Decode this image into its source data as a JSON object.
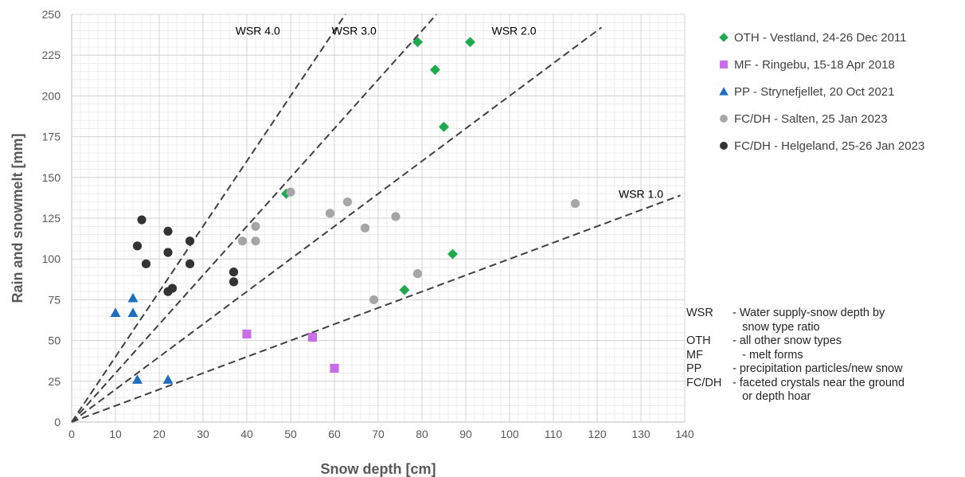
{
  "chart_data": {
    "type": "scatter",
    "xlabel": "Snow depth [cm]",
    "ylabel": "Rain and snowmelt [mm]",
    "xlim": [
      0,
      140
    ],
    "ylim": [
      0,
      250
    ],
    "x_ticks": [
      "0",
      "10",
      "20",
      "30",
      "40",
      "50",
      "60",
      "70",
      "80",
      "90",
      "100",
      "110",
      "120",
      "130",
      "140"
    ],
    "y_ticks": [
      "0",
      "25",
      "50",
      "75",
      "100",
      "125",
      "150",
      "175",
      "200",
      "225",
      "250"
    ],
    "grid": true,
    "legend_position": "top-right",
    "series": [
      {
        "name": "OTH - Vestland, 24-26 Dec 2011",
        "marker": "diamond",
        "color": "#1faa4f",
        "points": [
          [
            49,
            140
          ],
          [
            79,
            233
          ],
          [
            91,
            233
          ],
          [
            83,
            216
          ],
          [
            85,
            181
          ],
          [
            87,
            103
          ],
          [
            76,
            81
          ]
        ]
      },
      {
        "name": "MF - Ringebu, 15-18  Apr 2018",
        "marker": "square",
        "color": "#c86ee8",
        "points": [
          [
            40,
            54
          ],
          [
            55,
            52
          ],
          [
            60,
            33
          ]
        ]
      },
      {
        "name": "PP - Strynefjellet, 20 Oct 2021",
        "marker": "triangle",
        "color": "#1f6fbd",
        "points": [
          [
            10,
            67
          ],
          [
            14,
            76
          ],
          [
            14,
            67
          ],
          [
            15,
            26
          ],
          [
            22,
            26
          ]
        ]
      },
      {
        "name": "FC/DH - Salten, 25 Jan 2023",
        "marker": "circle",
        "color": "#a6a6a6",
        "points": [
          [
            39,
            111
          ],
          [
            42,
            120
          ],
          [
            42,
            111
          ],
          [
            50,
            141
          ],
          [
            59,
            128
          ],
          [
            63,
            135
          ],
          [
            67,
            119
          ],
          [
            74,
            126
          ],
          [
            79,
            91
          ],
          [
            69,
            75
          ],
          [
            115,
            134
          ]
        ]
      },
      {
        "name": "FC/DH - Helgeland, 25-26 Jan 2023",
        "marker": "circle",
        "color": "#333333",
        "points": [
          [
            16,
            124
          ],
          [
            15,
            108
          ],
          [
            17,
            97
          ],
          [
            22,
            117
          ],
          [
            22,
            104
          ],
          [
            27,
            111
          ],
          [
            27,
            97
          ],
          [
            22,
            80
          ],
          [
            23,
            82
          ],
          [
            37,
            92
          ],
          [
            37,
            86
          ]
        ]
      }
    ],
    "reference_lines": [
      {
        "label": "WSR 4.0",
        "slope": 4.0,
        "x_end": 62.5
      },
      {
        "label": "WSR 3.0",
        "slope": 3.0,
        "x_end": 83.3
      },
      {
        "label": "WSR 2.0",
        "slope": 2.0,
        "x_end": 121
      },
      {
        "label": "WSR 1.0",
        "slope": 1.0,
        "x_end": 139
      }
    ],
    "reference_line_label_positions": [
      {
        "label": "WSR 4.0",
        "x": 42.5,
        "y": 240
      },
      {
        "label": "WSR 3.0",
        "x": 64.5,
        "y": 240
      },
      {
        "label": "WSR 2.0",
        "x": 101,
        "y": 240
      },
      {
        "label": "WSR 1.0",
        "x": 130,
        "y": 140
      }
    ]
  },
  "glossary": [
    {
      "abbr": "WSR",
      "def": "- Water supply-snow depth by\n   snow type ratio"
    },
    {
      "abbr": "OTH",
      "def": "- all other snow types"
    },
    {
      "abbr": "MF",
      "def": "   - melt forms"
    },
    {
      "abbr": "PP",
      "def": "- precipitation particles/new snow"
    },
    {
      "abbr": "FC/DH",
      "def": "- faceted crystals near the ground\n   or depth hoar"
    }
  ]
}
